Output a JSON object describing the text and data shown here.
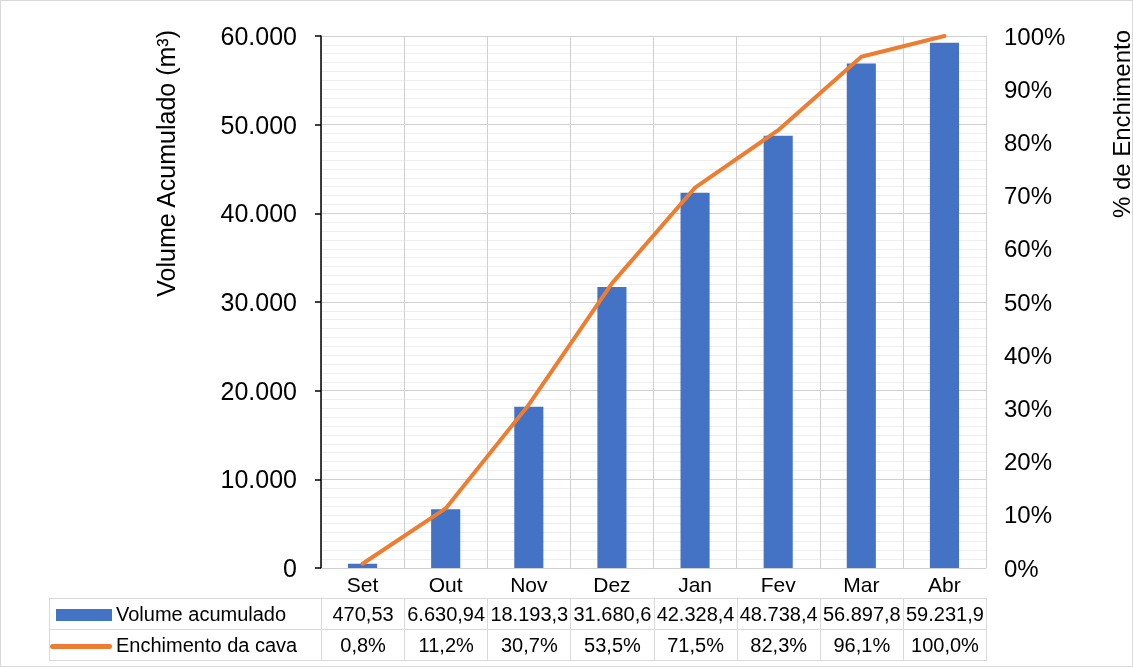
{
  "chart_data": {
    "type": "bar",
    "ylabel": "Volume Acumulado (m³)",
    "y2label": "% de Enchimento",
    "categories": [
      "Set",
      "Out",
      "Nov",
      "Dez",
      "Jan",
      "Fev",
      "Mar",
      "Abr"
    ],
    "series": [
      {
        "name": "Volume acumulado",
        "color": "#4472c4",
        "values": [
          470.53,
          6630.94,
          18193.3,
          31680.6,
          42328.4,
          48738.4,
          56897.8,
          59231.9
        ],
        "value_labels": [
          "470,53",
          "6.630,94",
          "18.193,3",
          "31.680,6",
          "42.328,4",
          "48.738,4",
          "56.897,8",
          "59.231,9"
        ]
      },
      {
        "name": "Enchimento da cava",
        "type": "line",
        "axis": "y2",
        "color": "#ed7d31",
        "values": [
          0.8,
          11.2,
          30.7,
          53.5,
          71.5,
          82.3,
          96.1,
          100.0
        ],
        "value_labels": [
          "0,8%",
          "11,2%",
          "30,7%",
          "53,5%",
          "71,5%",
          "82,3%",
          "96,1%",
          "100,0%"
        ]
      }
    ],
    "ylim": [
      0,
      60000
    ],
    "yticks": [
      0,
      {
        "value": 10000,
        "label": "10.000"
      },
      {
        "value": 20000,
        "label": "20.000"
      },
      {
        "value": 30000,
        "label": "30.000"
      },
      {
        "value": 40000,
        "label": "40.000"
      },
      {
        "value": 50000,
        "label": "50.000"
      },
      {
        "value": 60000,
        "label": "60.000"
      }
    ],
    "y2lim": [
      0,
      100
    ],
    "y2ticks": [
      {
        "value": 0,
        "label": "0%"
      },
      {
        "value": 10,
        "label": "10%"
      },
      {
        "value": 20,
        "label": "20%"
      },
      {
        "value": 30,
        "label": "30%"
      },
      {
        "value": 40,
        "label": "40%"
      },
      {
        "value": 50,
        "label": "50%"
      },
      {
        "value": 60,
        "label": "60%"
      },
      {
        "value": 70,
        "label": "70%"
      },
      {
        "value": 80,
        "label": "80%"
      },
      {
        "value": 90,
        "label": "90%"
      },
      {
        "value": 100,
        "label": "100%"
      }
    ],
    "grid": true,
    "legend": "bottom",
    "marker": "none",
    "line_style": "solid"
  }
}
